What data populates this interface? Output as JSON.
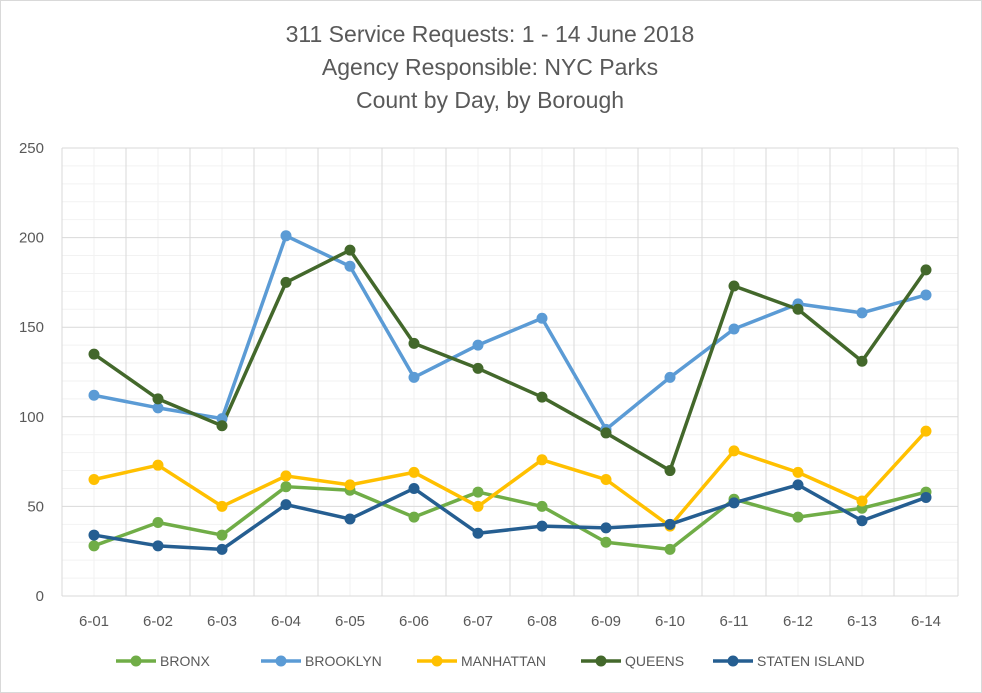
{
  "chart_data": {
    "type": "line",
    "title": [
      "311 Service Requests: 1 - 14 June 2018",
      "Agency Responsible: NYC Parks",
      "Count by Day, by Borough"
    ],
    "xlabel": "",
    "ylabel": "",
    "categories": [
      "6-01",
      "6-02",
      "6-03",
      "6-04",
      "6-05",
      "6-06",
      "6-07",
      "6-08",
      "6-09",
      "6-10",
      "6-11",
      "6-12",
      "6-13",
      "6-14"
    ],
    "ylim": [
      0,
      250
    ],
    "yticks": [
      "0",
      "50",
      "100",
      "150",
      "200",
      "250"
    ],
    "grid": true,
    "legend_position": "bottom",
    "series": [
      {
        "name": "BRONX",
        "color": "#70ad47",
        "values": [
          28,
          41,
          34,
          61,
          59,
          44,
          58,
          50,
          30,
          26,
          54,
          44,
          49,
          58
        ]
      },
      {
        "name": "BROOKLYN",
        "color": "#5b9bd5",
        "values": [
          112,
          105,
          99,
          201,
          184,
          122,
          140,
          155,
          93,
          122,
          149,
          163,
          158,
          168
        ]
      },
      {
        "name": "MANHATTAN",
        "color": "#ffc000",
        "values": [
          65,
          73,
          50,
          67,
          62,
          69,
          50,
          76,
          65,
          39,
          81,
          69,
          53,
          92
        ]
      },
      {
        "name": "QUEENS",
        "color": "#43682b",
        "values": [
          135,
          110,
          95,
          175,
          193,
          141,
          127,
          111,
          91,
          70,
          173,
          160,
          131,
          182
        ]
      },
      {
        "name": "STATEN ISLAND",
        "color": "#255e91",
        "values": [
          34,
          28,
          26,
          51,
          43,
          60,
          35,
          39,
          38,
          40,
          52,
          62,
          42,
          55
        ]
      }
    ]
  }
}
